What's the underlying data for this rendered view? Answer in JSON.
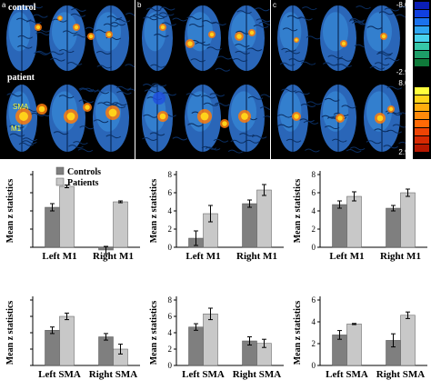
{
  "panels": [
    {
      "letter": "a",
      "row1_label": "control",
      "row2_label": "patient",
      "roi": [
        "SMA",
        "M1"
      ]
    },
    {
      "letter": "b"
    },
    {
      "letter": "c"
    }
  ],
  "colorbar": {
    "top_min": "-8.00",
    "top_max": "-2.98",
    "bottom_min": "8.00",
    "bottom_max": "2.98",
    "neg_colors": [
      "#0b1fb8",
      "#1040e0",
      "#1a72ee",
      "#2fa6f2",
      "#48d2ee",
      "#36c7a8",
      "#1d9e68",
      "#0f7a3a"
    ],
    "pos_colors": [
      "#ffff3c",
      "#ffd41a",
      "#ffad0e",
      "#ff8a0a",
      "#ff6a06",
      "#ee4404",
      "#d72a02",
      "#b81800"
    ]
  },
  "chart_data": [
    {
      "type": "bar",
      "ylabel": "Mean z statistics",
      "ylim": [
        0,
        8
      ],
      "yticks": [],
      "categories": [
        "Left M1",
        "Right M1"
      ],
      "series": [
        {
          "name": "Controls",
          "values": [
            4.4,
            -0.3
          ],
          "errors": [
            0.4,
            0.4
          ]
        },
        {
          "name": "Patients",
          "values": [
            6.7,
            5.0
          ],
          "errors": [
            0.15,
            0.1
          ]
        }
      ],
      "legend": "top-right"
    },
    {
      "type": "bar",
      "ylabel": "Mean z statistics",
      "ylim": [
        0,
        8
      ],
      "yticks": [
        "0",
        "2",
        "4",
        "6",
        "8"
      ],
      "categories": [
        "Left M1",
        "Right M1"
      ],
      "series": [
        {
          "name": "Controls",
          "values": [
            1.0,
            4.8
          ],
          "errors": [
            0.8,
            0.4
          ]
        },
        {
          "name": "Patients",
          "values": [
            3.7,
            6.3
          ],
          "errors": [
            0.9,
            0.6
          ]
        }
      ]
    },
    {
      "type": "bar",
      "ylabel": "Mean z statistics",
      "ylim": [
        0,
        8
      ],
      "yticks": [
        "0",
        "2",
        "4",
        "6",
        "8"
      ],
      "categories": [
        "Left M1",
        "Right M1"
      ],
      "series": [
        {
          "name": "Controls",
          "values": [
            4.7,
            4.3
          ],
          "errors": [
            0.4,
            0.3
          ]
        },
        {
          "name": "Patients",
          "values": [
            5.6,
            6.0
          ],
          "errors": [
            0.5,
            0.4
          ]
        }
      ]
    },
    {
      "type": "bar",
      "ylabel": "Mean z statistics",
      "ylim": [
        0,
        8
      ],
      "yticks": [],
      "categories": [
        "Left SMA",
        "Right SMA"
      ],
      "series": [
        {
          "name": "Controls",
          "values": [
            4.3,
            3.5
          ],
          "errors": [
            0.4,
            0.4
          ]
        },
        {
          "name": "Patients",
          "values": [
            6.0,
            2.0
          ],
          "errors": [
            0.4,
            0.6
          ]
        }
      ]
    },
    {
      "type": "bar",
      "ylabel": "Mean z statistics",
      "ylim": [
        0,
        8
      ],
      "yticks": [
        "0",
        "2",
        "4",
        "6",
        "8"
      ],
      "categories": [
        "Left SMA",
        "Right SMA"
      ],
      "series": [
        {
          "name": "Controls",
          "values": [
            4.7,
            3.0
          ],
          "errors": [
            0.4,
            0.5
          ]
        },
        {
          "name": "Patients",
          "values": [
            6.3,
            2.7
          ],
          "errors": [
            0.7,
            0.5
          ]
        }
      ]
    },
    {
      "type": "bar",
      "ylabel": "Mean z statistics",
      "ylim": [
        0,
        6
      ],
      "yticks": [
        "0",
        "2",
        "4",
        "6"
      ],
      "categories": [
        "Left SMA",
        "Right SMA"
      ],
      "series": [
        {
          "name": "Controls",
          "values": [
            2.8,
            2.3
          ],
          "errors": [
            0.4,
            0.6
          ]
        },
        {
          "name": "Patients",
          "values": [
            3.8,
            4.6
          ],
          "errors": [
            0.05,
            0.3
          ]
        }
      ]
    }
  ],
  "colors": {
    "controls": "#7f7f7f",
    "patients": "#c8c8c8",
    "error": "#000000"
  }
}
